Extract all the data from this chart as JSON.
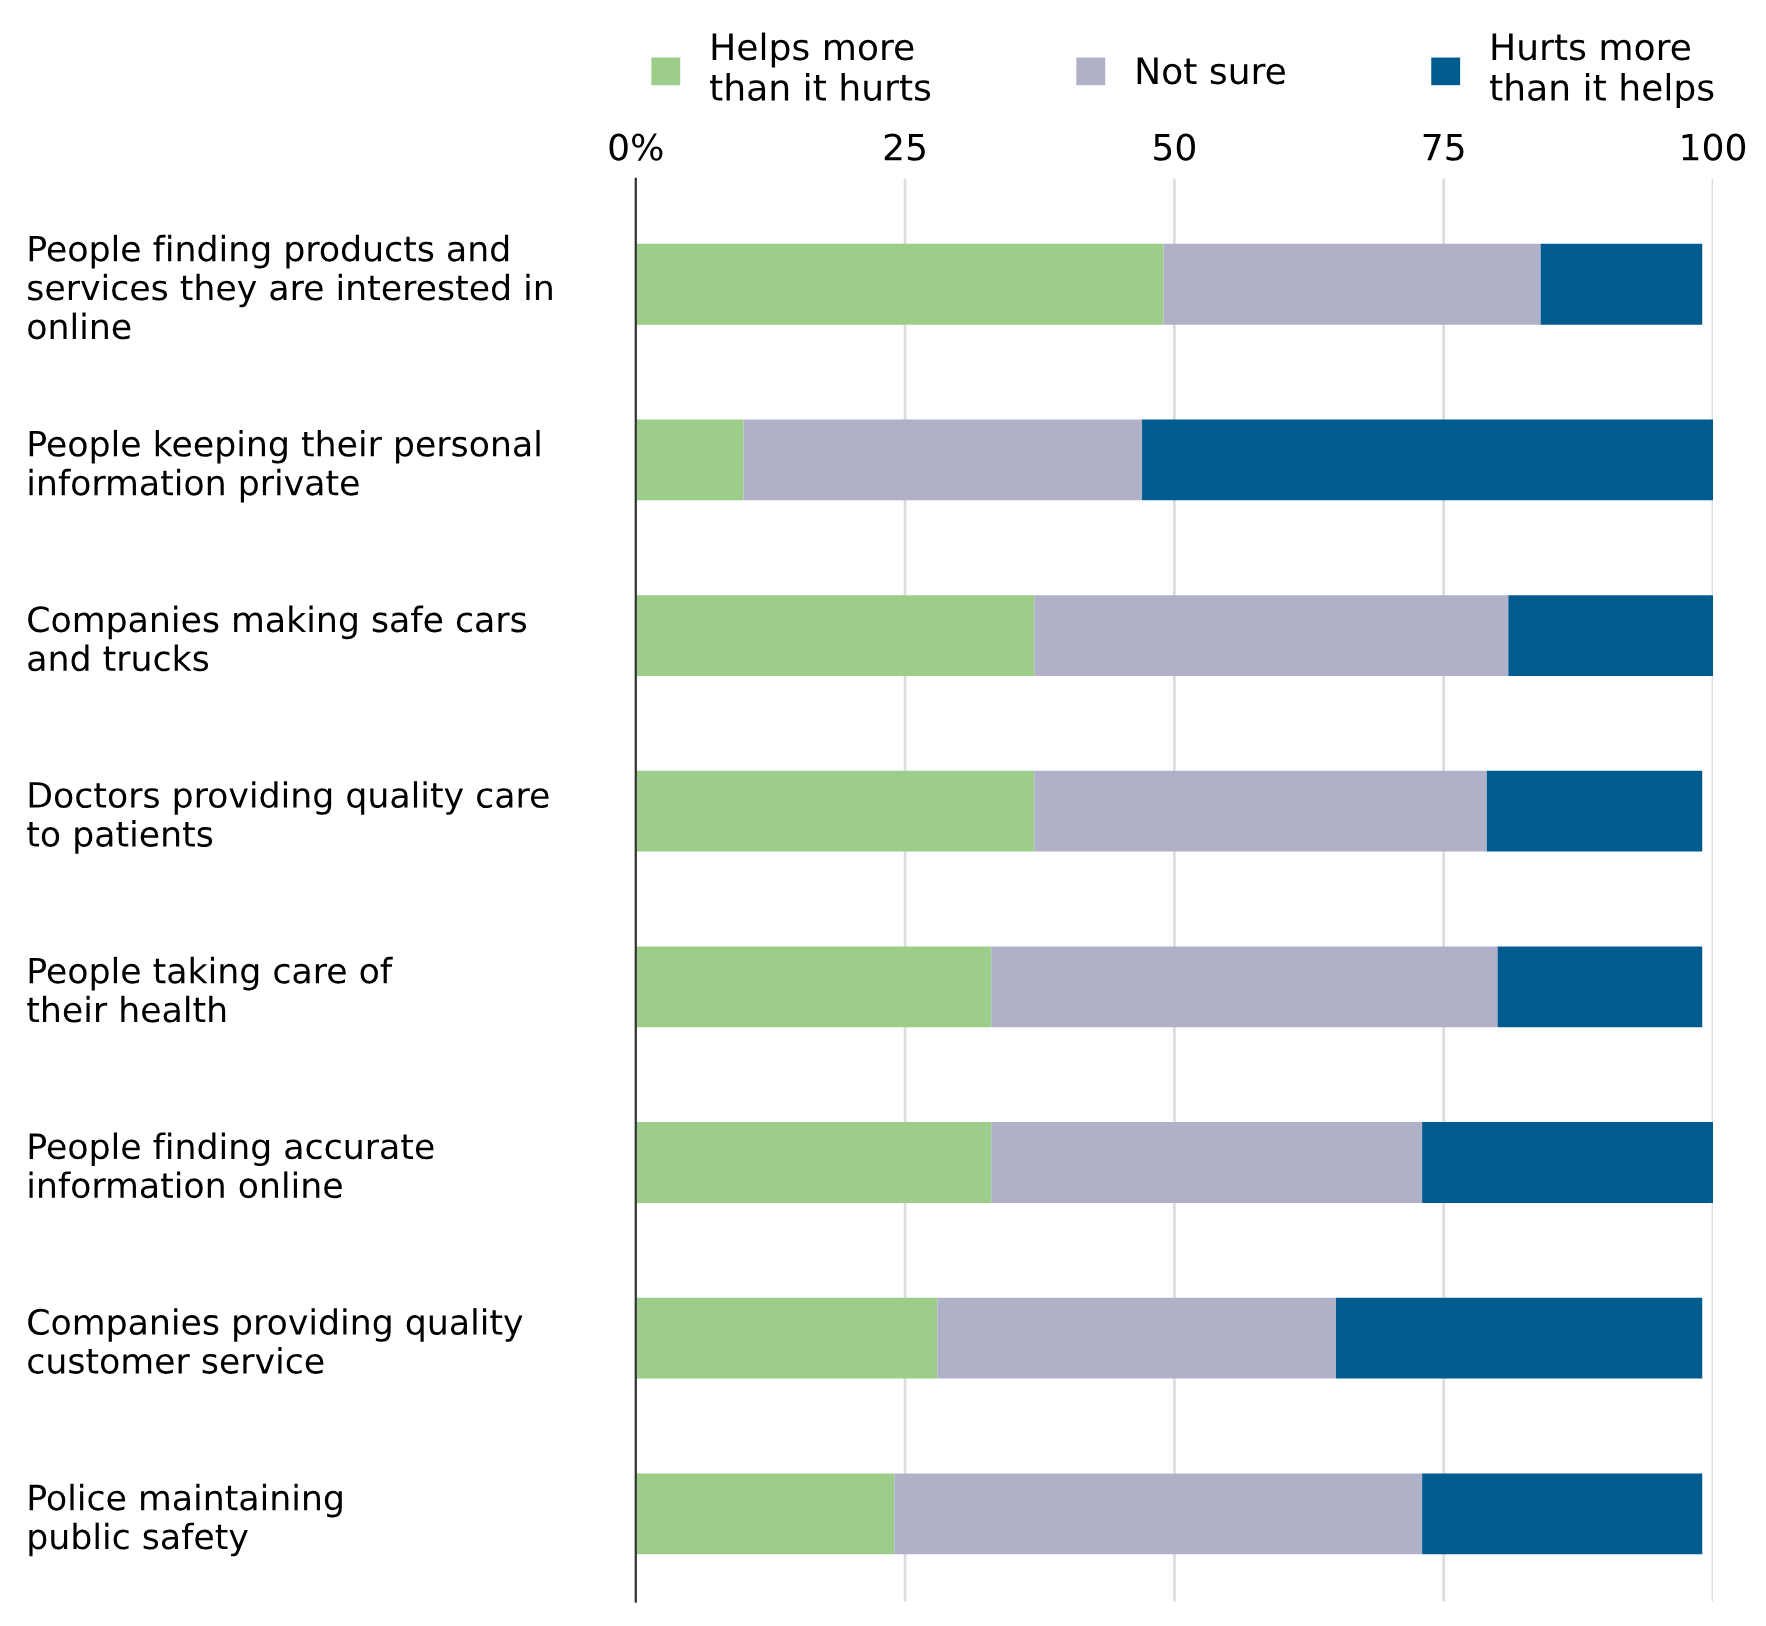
{
  "chart_data": {
    "type": "bar",
    "orientation": "horizontal",
    "stacked": true,
    "categories": [
      "People finding products and\nservices they are interested in\nonline",
      "People keeping their personal\ninformation private",
      "Companies making safe cars\nand trucks",
      "Doctors providing quality care\nto patients",
      "People taking care of\ntheir health",
      "People finding accurate\ninformation online",
      "Companies providing quality\ncustomer service",
      "Police maintaining\npublic safety"
    ],
    "series": [
      {
        "name": "Helps more\nthan it hurts",
        "color": "#9ccd8a",
        "values": [
          49,
          10,
          37,
          37,
          33,
          33,
          28,
          24
        ]
      },
      {
        "name": "Not sure",
        "color": "#b0b1c8",
        "values": [
          35,
          37,
          44,
          42,
          47,
          40,
          37,
          49
        ]
      },
      {
        "name": "Hurts more\nthan it helps",
        "color": "#005b8e",
        "values": [
          15,
          53,
          19,
          20,
          19,
          27,
          34,
          26
        ]
      }
    ],
    "xlim": [
      0,
      100
    ],
    "xticks": [
      {
        "value": 0,
        "label": "0%"
      },
      25,
      50,
      75,
      100
    ],
    "grid": "x",
    "legend": "top"
  }
}
